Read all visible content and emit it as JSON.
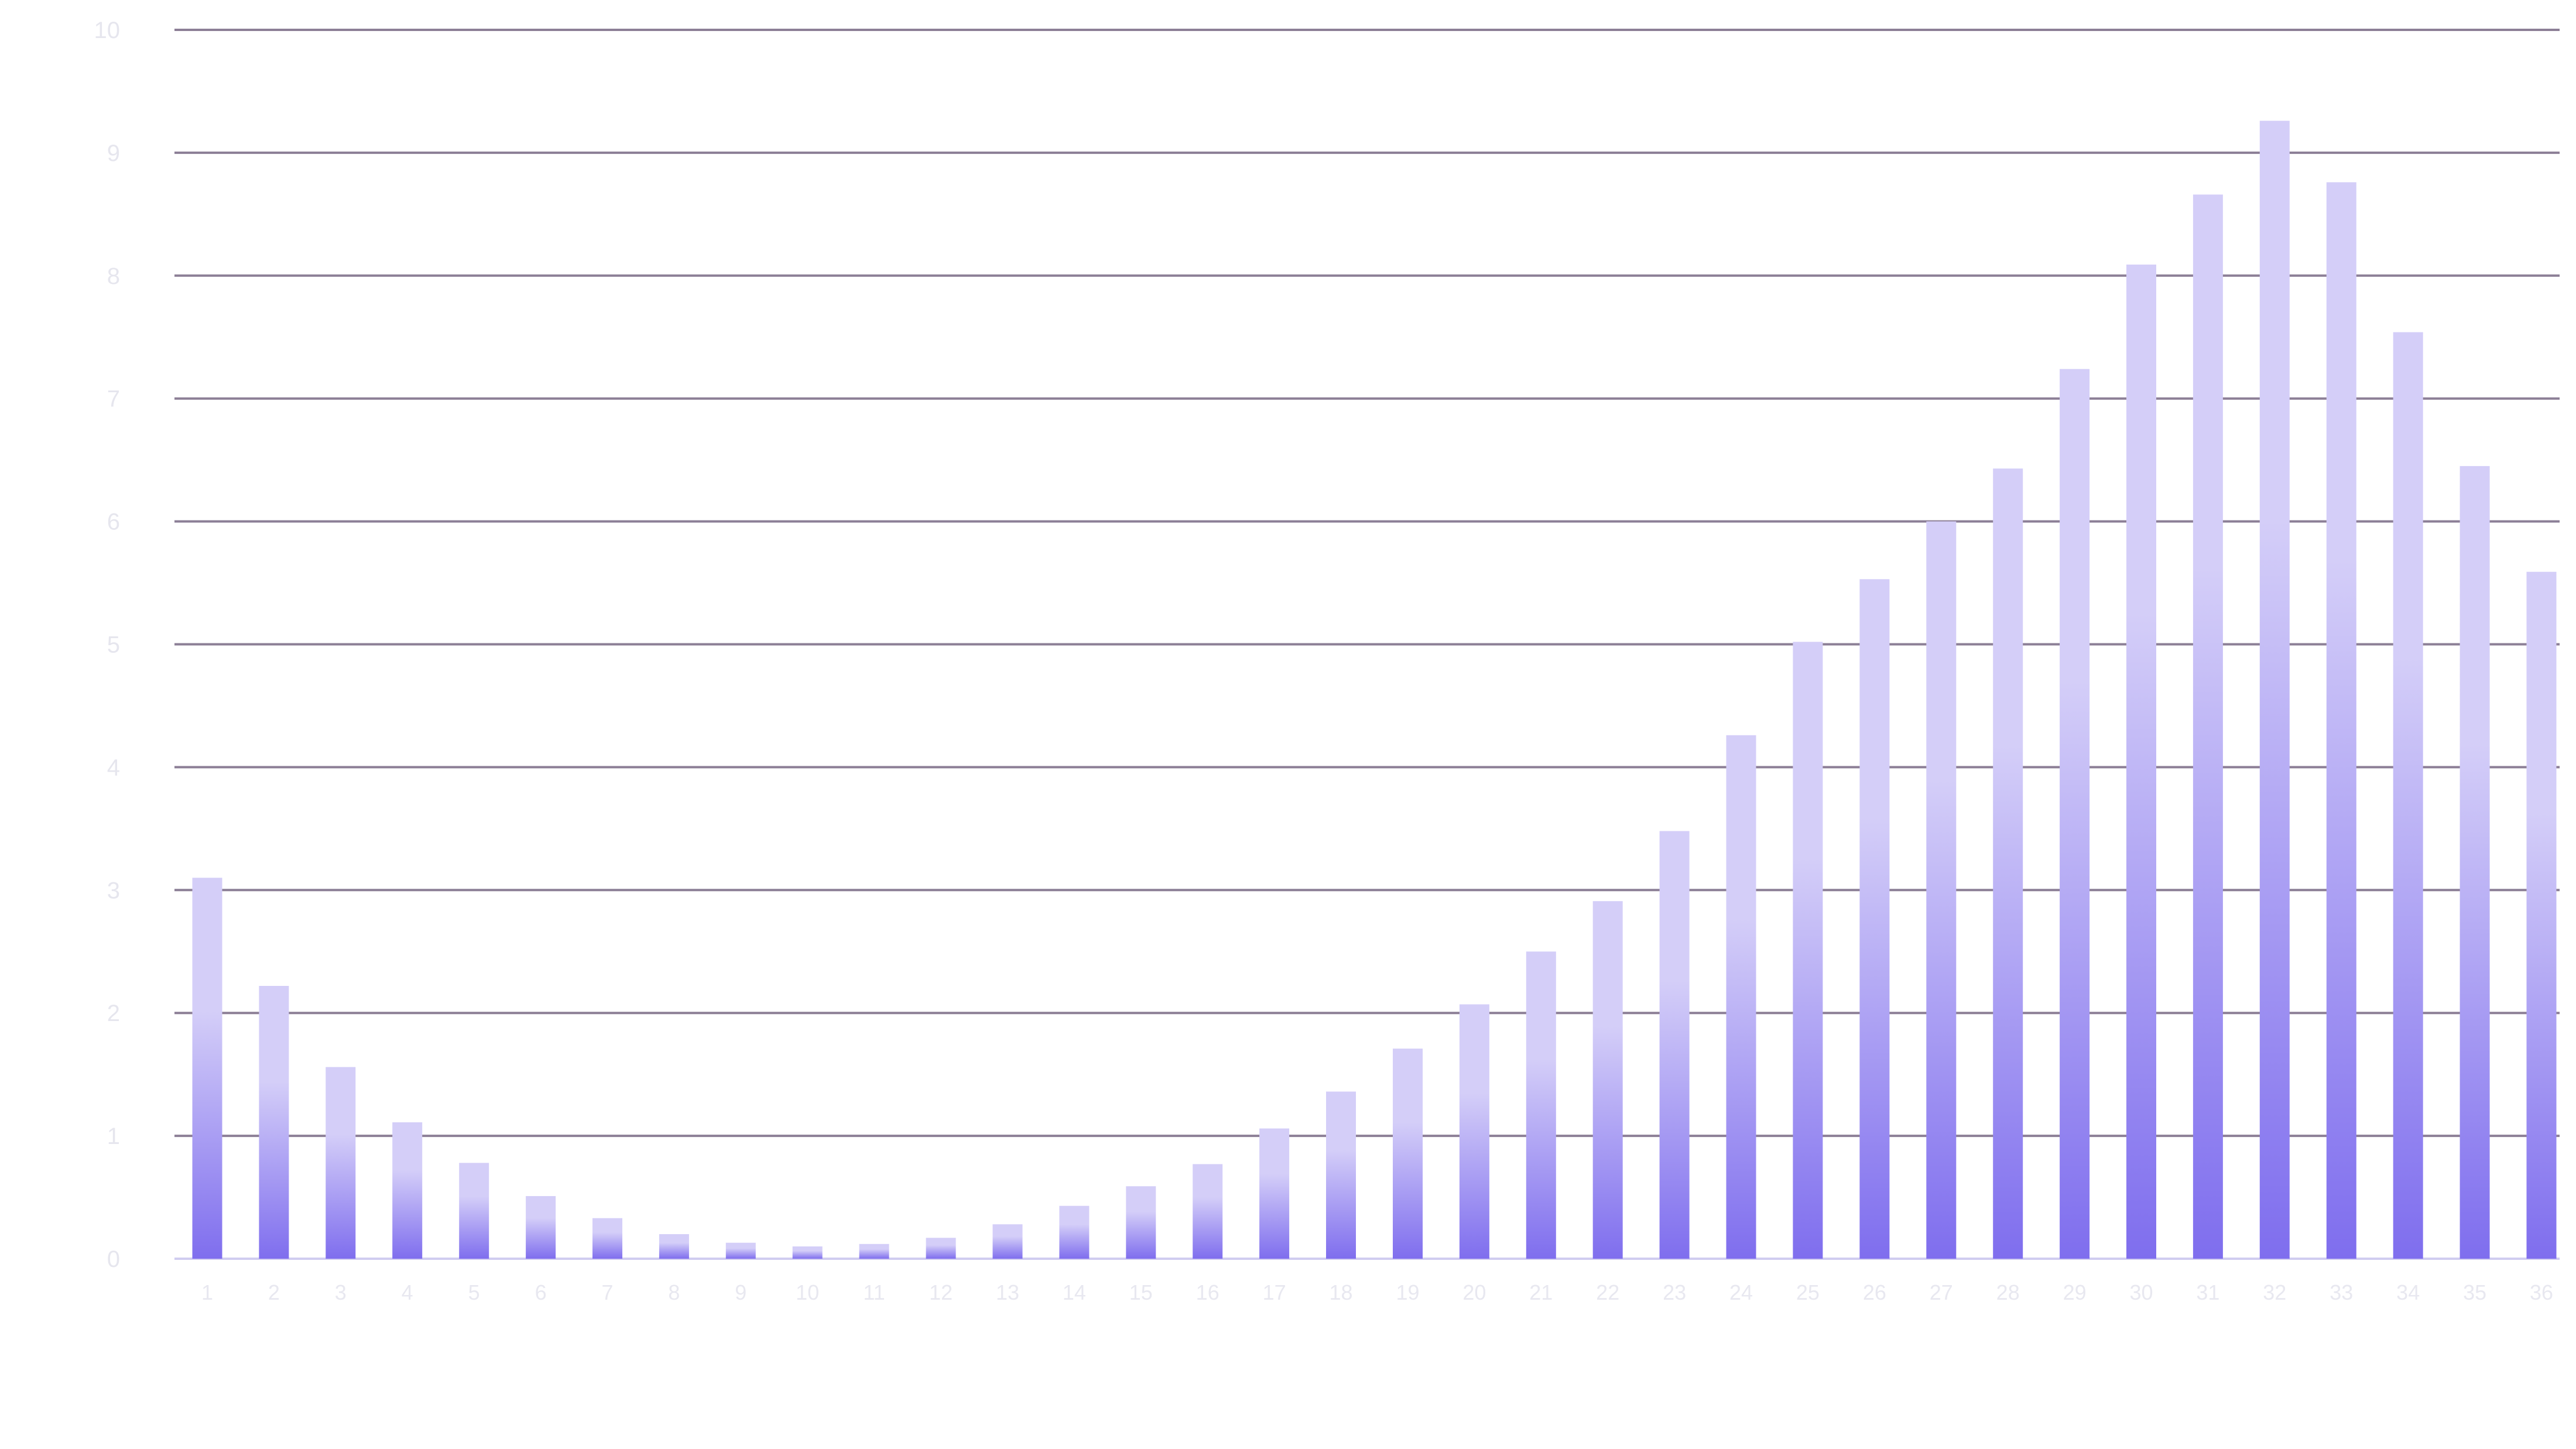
{
  "chart_data": {
    "type": "bar",
    "title": "",
    "xlabel": "",
    "ylabel": "",
    "ylim": [
      0,
      10
    ],
    "grid": true,
    "legend": "none",
    "categories": [
      "1",
      "2",
      "3",
      "4",
      "5",
      "6",
      "7",
      "8",
      "9",
      "10",
      "11",
      "12",
      "13",
      "14",
      "15",
      "16",
      "17",
      "18",
      "19",
      "20",
      "21",
      "22",
      "23",
      "24",
      "25",
      "26",
      "27",
      "28",
      "29",
      "30",
      "31",
      "32",
      "33",
      "34",
      "35",
      "36"
    ],
    "series": [
      {
        "values": [
          3.1,
          2.22,
          1.56,
          1.11,
          0.78,
          0.51,
          0.33,
          0.2,
          0.13,
          0.1,
          0.12,
          0.17,
          0.28,
          0.43,
          0.59,
          0.77,
          1.06,
          1.36,
          1.71,
          2.07,
          2.5,
          2.91,
          3.48,
          4.26,
          5.02,
          5.53,
          6.0,
          6.43,
          7.24,
          8.09,
          8.66,
          9.26,
          8.76,
          7.54,
          6.45,
          5.59
        ]
      }
    ],
    "colors": {
      "bar_top": "#d4cef8",
      "bar_bottom": "#7f6eee",
      "grid": "#8c7f96",
      "baseline": "#d0ccf0"
    }
  }
}
